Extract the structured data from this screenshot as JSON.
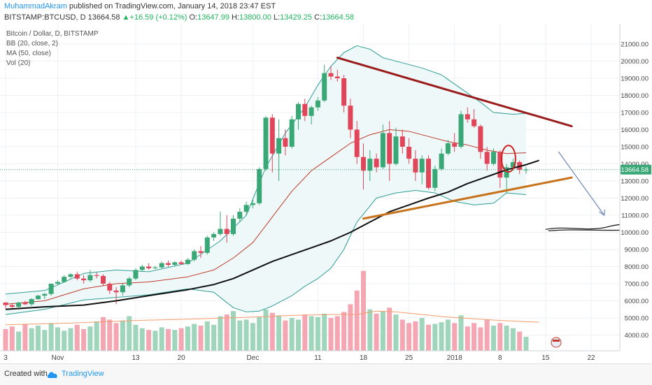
{
  "header": {
    "author": "MuhammadAkram",
    "published": "published on TradingView.com, January 14, 2018 23:47 EST",
    "symbol": "BITSTAMP:BTCUSD, D",
    "last": "13664.58",
    "change": "+16.59 (+0.12%)",
    "o_label": "O:",
    "o_value": "13647.99",
    "h_label": "H:",
    "h_value": "13800.00",
    "l_label": "L:",
    "l_value": "13429.25",
    "c_label": "C:",
    "c_value": "13664.58"
  },
  "legend": {
    "title": "Bitcoin / Dollar, D, BITSTAMP",
    "bb": "BB (20, close, 2)",
    "ma": "MA (50, close)",
    "vol": "Vol (20)"
  },
  "footer": {
    "created": "Created with",
    "brand": "TradingView"
  },
  "colors": {
    "up": "#3aa876",
    "down": "#e0455a",
    "vol_up": "#9fd6bb",
    "vol_down": "#f4a6b2",
    "bb_line": "#2e9e96",
    "bb_fill": "#eef8f8",
    "basis": "#c0392b",
    "ma": "#111111",
    "vol_ma": "#f39c6b",
    "resistance": "#9b1c1c",
    "support": "#c8731c",
    "arrow": "#6f86b8",
    "accent": "#2196f3"
  },
  "chart_data": {
    "type": "candlestick",
    "ylim": [
      3000,
      21500
    ],
    "y_ticks": [
      "4000.00",
      "5000.00",
      "6000.00",
      "7000.00",
      "8000.00",
      "9000.00",
      "10000.00",
      "11000.00",
      "12000.00",
      "13000.00",
      "14000.00",
      "15000.00",
      "16000.00",
      "17000.00",
      "18000.00",
      "19000.00",
      "20000.00",
      "21000.00"
    ],
    "x_ticks": [
      {
        "label": "3",
        "date": "2017-10-24"
      },
      {
        "label": "Nov",
        "date": "2017-11-01"
      },
      {
        "label": "13",
        "date": "2017-11-13"
      },
      {
        "label": "20",
        "date": "2017-11-20"
      },
      {
        "label": "Dec",
        "date": "2017-12-01"
      },
      {
        "label": "11",
        "date": "2017-12-11"
      },
      {
        "label": "18",
        "date": "2017-12-18"
      },
      {
        "label": "25",
        "date": "2017-12-25"
      },
      {
        "label": "2018",
        "date": "2018-01-01"
      },
      {
        "label": "8",
        "date": "2018-01-08"
      },
      {
        "label": "15",
        "date": "2018-01-15"
      },
      {
        "label": "22",
        "date": "2018-01-22"
      }
    ],
    "price_label": "13664.58",
    "last_price": 13664.58,
    "start_date": "2017-10-24",
    "candles": [
      [
        5900,
        5920,
        5550,
        5750
      ],
      [
        5750,
        5800,
        5500,
        5650
      ],
      [
        5650,
        5950,
        5600,
        5900
      ],
      [
        5900,
        6000,
        5750,
        5800
      ],
      [
        5800,
        6150,
        5700,
        6100
      ],
      [
        6100,
        6350,
        6050,
        6300
      ],
      [
        6300,
        6450,
        6100,
        6400
      ],
      [
        6400,
        7000,
        6300,
        7000
      ],
      [
        7000,
        7200,
        6900,
        7100
      ],
      [
        7100,
        7500,
        7050,
        7400
      ],
      [
        7400,
        7600,
        7300,
        7550
      ],
      [
        7550,
        7700,
        7200,
        7300
      ],
      [
        7300,
        7500,
        7000,
        7200
      ],
      [
        7200,
        7800,
        7100,
        7500
      ],
      [
        7500,
        7650,
        7300,
        7450
      ],
      [
        7450,
        7550,
        6900,
        7000
      ],
      [
        7000,
        7100,
        6400,
        6600
      ],
      [
        6600,
        6800,
        5800,
        6500
      ],
      [
        6500,
        7000,
        6300,
        6900
      ],
      [
        6900,
        7400,
        6800,
        7300
      ],
      [
        7300,
        7900,
        7200,
        7800
      ],
      [
        7800,
        8100,
        7700,
        8000
      ],
      [
        8000,
        8200,
        7800,
        7900
      ],
      [
        7900,
        8050,
        7850,
        7950
      ],
      [
        7950,
        8300,
        7900,
        8200
      ],
      [
        8200,
        8350,
        8000,
        8100
      ],
      [
        8100,
        8300,
        8000,
        8250
      ],
      [
        8250,
        8350,
        8100,
        8150
      ],
      [
        8150,
        8500,
        8100,
        8400
      ],
      [
        8400,
        9000,
        8300,
        8900
      ],
      [
        8900,
        9200,
        8500,
        8800
      ],
      [
        8800,
        9800,
        8700,
        9700
      ],
      [
        9700,
        10000,
        9500,
        9900
      ],
      [
        9900,
        11200,
        9800,
        10200
      ],
      [
        10200,
        11000,
        9400,
        9900
      ],
      [
        9900,
        11000,
        9800,
        10800
      ],
      [
        10800,
        11400,
        10600,
        11200
      ],
      [
        11200,
        11800,
        11000,
        11600
      ],
      [
        11600,
        11900,
        11400,
        11700
      ],
      [
        11700,
        13800,
        11600,
        13700
      ],
      [
        13700,
        16800,
        13600,
        16700
      ],
      [
        16700,
        16900,
        13500,
        14600
      ],
      [
        14600,
        16600,
        13000,
        15500
      ],
      [
        15500,
        16000,
        14500,
        15000
      ],
      [
        15000,
        16800,
        14900,
        16600
      ],
      [
        16600,
        17600,
        16000,
        17500
      ],
      [
        17500,
        17800,
        16500,
        16800
      ],
      [
        16800,
        17400,
        16300,
        17300
      ],
      [
        17300,
        17900,
        17100,
        17700
      ],
      [
        17700,
        19800,
        17600,
        19300
      ],
      [
        19300,
        19700,
        18900,
        19100
      ],
      [
        19100,
        19500,
        18800,
        19000
      ],
      [
        19000,
        19200,
        17000,
        17400
      ],
      [
        17400,
        17800,
        15500,
        16000
      ],
      [
        16000,
        16500,
        14000,
        14400
      ],
      [
        14400,
        15200,
        12500,
        13600
      ],
      [
        13600,
        14800,
        13000,
        14300
      ],
      [
        14300,
        14600,
        13500,
        13800
      ],
      [
        13800,
        16300,
        13700,
        15800
      ],
      [
        15800,
        16500,
        13000,
        14000
      ],
      [
        14000,
        16100,
        13900,
        15600
      ],
      [
        15600,
        16000,
        14600,
        15000
      ],
      [
        15000,
        15500,
        14000,
        14300
      ],
      [
        14300,
        14800,
        13000,
        13500
      ],
      [
        13500,
        14500,
        12800,
        14300
      ],
      [
        14300,
        14500,
        12500,
        12600
      ],
      [
        12600,
        13900,
        12400,
        13700
      ],
      [
        13700,
        14900,
        13600,
        14600
      ],
      [
        14600,
        15400,
        14500,
        15200
      ],
      [
        15200,
        15800,
        14700,
        15000
      ],
      [
        15000,
        17100,
        14900,
        16900
      ],
      [
        16900,
        17300,
        16400,
        16600
      ],
      [
        16600,
        17200,
        16100,
        16200
      ],
      [
        16200,
        16300,
        14300,
        14700
      ],
      [
        14700,
        15000,
        13600,
        14000
      ],
      [
        14000,
        14900,
        13900,
        14700
      ],
      [
        14700,
        14800,
        12600,
        13200
      ],
      [
        13200,
        14000,
        12300,
        13800
      ],
      [
        13800,
        14300,
        13600,
        14100
      ],
      [
        14100,
        14200,
        13400,
        13648
      ],
      [
        13648,
        13800,
        13429,
        13665
      ]
    ],
    "volumes": [
      [
        4350,
        0
      ],
      [
        4500,
        0
      ],
      [
        4200,
        1
      ],
      [
        4650,
        0
      ],
      [
        4400,
        1
      ],
      [
        4550,
        1
      ],
      [
        4300,
        1
      ],
      [
        4700,
        1
      ],
      [
        4450,
        1
      ],
      [
        4250,
        1
      ],
      [
        4400,
        1
      ],
      [
        4600,
        0
      ],
      [
        4350,
        0
      ],
      [
        4500,
        1
      ],
      [
        4800,
        1
      ],
      [
        5050,
        0
      ],
      [
        4900,
        0
      ],
      [
        4700,
        0
      ],
      [
        4850,
        1
      ],
      [
        5100,
        1
      ],
      [
        4600,
        1
      ],
      [
        4400,
        1
      ],
      [
        4300,
        0
      ],
      [
        4250,
        1
      ],
      [
        4450,
        1
      ],
      [
        4350,
        0
      ],
      [
        4300,
        1
      ],
      [
        4400,
        0
      ],
      [
        4500,
        1
      ],
      [
        4650,
        1
      ],
      [
        4550,
        0
      ],
      [
        4800,
        1
      ],
      [
        4600,
        1
      ],
      [
        5100,
        1
      ],
      [
        5200,
        0
      ],
      [
        5400,
        1
      ],
      [
        4850,
        1
      ],
      [
        4900,
        1
      ],
      [
        4700,
        1
      ],
      [
        5050,
        1
      ],
      [
        5500,
        1
      ],
      [
        5300,
        0
      ],
      [
        5150,
        1
      ],
      [
        4850,
        0
      ],
      [
        5000,
        1
      ],
      [
        4900,
        1
      ],
      [
        5200,
        0
      ],
      [
        5100,
        1
      ],
      [
        5050,
        1
      ],
      [
        5250,
        1
      ],
      [
        5000,
        0
      ],
      [
        5100,
        0
      ],
      [
        5350,
        0
      ],
      [
        5800,
        0
      ],
      [
        6600,
        0
      ],
      [
        7750,
        0
      ],
      [
        5500,
        1
      ],
      [
        5250,
        0
      ],
      [
        5400,
        1
      ],
      [
        5600,
        0
      ],
      [
        5200,
        1
      ],
      [
        4900,
        0
      ],
      [
        4700,
        0
      ],
      [
        4800,
        0
      ],
      [
        5000,
        1
      ],
      [
        4600,
        0
      ],
      [
        4650,
        1
      ],
      [
        4750,
        1
      ],
      [
        4900,
        1
      ],
      [
        4700,
        0
      ],
      [
        5150,
        1
      ],
      [
        4500,
        0
      ],
      [
        4700,
        0
      ],
      [
        4450,
        0
      ],
      [
        4900,
        0
      ],
      [
        4550,
        1
      ],
      [
        4700,
        0
      ],
      [
        4550,
        1
      ],
      [
        4400,
        1
      ],
      [
        4200,
        0
      ],
      [
        3900,
        1
      ]
    ],
    "bb_upper": [
      [
        0,
        6400
      ],
      [
        6,
        6600
      ],
      [
        12,
        7600
      ],
      [
        17,
        7800
      ],
      [
        22,
        7700
      ],
      [
        28,
        8200
      ],
      [
        33,
        9500
      ],
      [
        37,
        11000
      ],
      [
        40,
        13800
      ],
      [
        43,
        15800
      ],
      [
        46,
        17300
      ],
      [
        48,
        18600
      ],
      [
        50,
        19700
      ],
      [
        52,
        20500
      ],
      [
        54,
        20900
      ],
      [
        56,
        20700
      ],
      [
        58,
        20200
      ],
      [
        61,
        19900
      ],
      [
        64,
        19600
      ],
      [
        67,
        19200
      ],
      [
        70,
        18400
      ],
      [
        73,
        17600
      ],
      [
        75,
        17000
      ],
      [
        78,
        16900
      ],
      [
        80,
        16950
      ]
    ],
    "bb_lower": [
      [
        0,
        5200
      ],
      [
        6,
        5500
      ],
      [
        12,
        6050
      ],
      [
        17,
        6200
      ],
      [
        22,
        6350
      ],
      [
        28,
        6700
      ],
      [
        32,
        6500
      ],
      [
        35,
        5600
      ],
      [
        37,
        5350
      ],
      [
        39,
        5400
      ],
      [
        41,
        5700
      ],
      [
        44,
        6300
      ],
      [
        46,
        6850
      ],
      [
        48,
        7300
      ],
      [
        50,
        7900
      ],
      [
        52,
        9000
      ],
      [
        54,
        10600
      ],
      [
        57,
        12000
      ],
      [
        60,
        12300
      ],
      [
        63,
        12450
      ],
      [
        66,
        12300
      ],
      [
        69,
        11800
      ],
      [
        72,
        11600
      ],
      [
        75,
        11700
      ],
      [
        77,
        12300
      ],
      [
        80,
        12200
      ]
    ],
    "bb_basis": [
      [
        0,
        5800
      ],
      [
        6,
        6000
      ],
      [
        12,
        6700
      ],
      [
        17,
        7000
      ],
      [
        22,
        7100
      ],
      [
        28,
        7400
      ],
      [
        32,
        7800
      ],
      [
        35,
        8500
      ],
      [
        38,
        9400
      ],
      [
        41,
        10900
      ],
      [
        44,
        12400
      ],
      [
        47,
        13600
      ],
      [
        50,
        14400
      ],
      [
        53,
        15200
      ],
      [
        56,
        15700
      ],
      [
        59,
        16000
      ],
      [
        62,
        15900
      ],
      [
        65,
        15600
      ],
      [
        68,
        15300
      ],
      [
        71,
        15100
      ],
      [
        74,
        14800
      ],
      [
        77,
        14600
      ],
      [
        80,
        14650
      ]
    ],
    "ma50": [
      [
        0,
        5500
      ],
      [
        6,
        5650
      ],
      [
        12,
        5750
      ],
      [
        17,
        6000
      ],
      [
        22,
        6300
      ],
      [
        28,
        6650
      ],
      [
        32,
        6950
      ],
      [
        35,
        7300
      ],
      [
        38,
        7800
      ],
      [
        41,
        8300
      ],
      [
        44,
        8700
      ],
      [
        47,
        9100
      ],
      [
        50,
        9500
      ],
      [
        53,
        10000
      ],
      [
        56,
        10600
      ],
      [
        59,
        11200
      ],
      [
        62,
        11600
      ],
      [
        65,
        12000
      ],
      [
        68,
        12350
      ],
      [
        71,
        12850
      ],
      [
        74,
        13250
      ],
      [
        77,
        13650
      ],
      [
        80,
        13950
      ],
      [
        82,
        14200
      ]
    ],
    "vol_ma": [
      [
        0,
        4600
      ],
      [
        10,
        4700
      ],
      [
        20,
        4850
      ],
      [
        30,
        4950
      ],
      [
        38,
        5050
      ],
      [
        44,
        5150
      ],
      [
        50,
        5200
      ],
      [
        54,
        5200
      ],
      [
        57,
        5400
      ],
      [
        60,
        5350
      ],
      [
        64,
        5200
      ],
      [
        68,
        5050
      ],
      [
        72,
        4950
      ],
      [
        76,
        4850
      ],
      [
        82,
        4750
      ]
    ],
    "resistance_line": [
      [
        51,
        20200
      ],
      [
        87,
        16200
      ]
    ],
    "support_line": [
      [
        55,
        10800
      ],
      [
        87,
        13200
      ]
    ],
    "forecast_arrow": [
      [
        85,
        14700
      ],
      [
        92,
        11000
      ]
    ],
    "target_scribble": [
      [
        83,
        10250
      ],
      [
        97,
        10300
      ]
    ]
  }
}
